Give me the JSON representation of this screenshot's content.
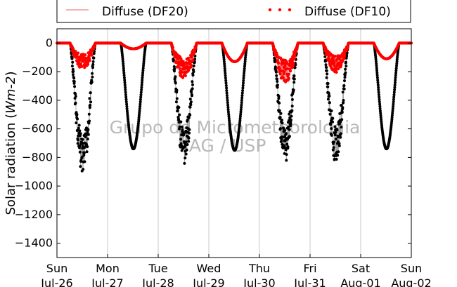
{
  "chart_data": {
    "type": "scatter",
    "ylabel_prefix": "Solar radiation (",
    "ylabel_unit": "Wm-2",
    "ylabel_suffix": ")",
    "ylim": [
      -1500,
      100
    ],
    "yticks": [
      0,
      -200,
      -400,
      -600,
      -800,
      -1000,
      -1200,
      -1400
    ],
    "xlim_days": [
      0,
      7
    ],
    "xticks": [
      {
        "day": "Sun",
        "date": "Jul-26"
      },
      {
        "day": "Mon",
        "date": "Jul-27"
      },
      {
        "day": "Tue",
        "date": "Jul-28"
      },
      {
        "day": "Wed",
        "date": "Jul-29"
      },
      {
        "day": "Thu",
        "date": "Jul-30"
      },
      {
        "day": "Fri",
        "date": "Jul-31"
      },
      {
        "day": "Sat",
        "date": "Aug-01"
      },
      {
        "day": "Sun",
        "date": "Aug-02"
      }
    ],
    "grid": "vertical",
    "legend_position": "top",
    "watermark": [
      "Grupo de Micrometeorologia",
      "IAG / USP"
    ],
    "series": [
      {
        "name": "Diffuse (DF20)",
        "style": "line",
        "color": "#f08080"
      },
      {
        "name": "Diffuse (DF10)",
        "style": "dots",
        "color": "#ff0000"
      },
      {
        "name": "",
        "style": "dots",
        "color": "#000000"
      }
    ],
    "daily_profiles": [
      {
        "global_min": -800,
        "diffuse_min": -130,
        "noisy": true
      },
      {
        "global_min": -740,
        "diffuse_min": -40,
        "noisy": false
      },
      {
        "global_min": -740,
        "diffuse_min": -180,
        "noisy": true
      },
      {
        "global_min": -750,
        "diffuse_min": -130,
        "noisy": false
      },
      {
        "global_min": -710,
        "diffuse_min": -200,
        "noisy": true
      },
      {
        "global_min": -710,
        "diffuse_min": -150,
        "noisy": true
      },
      {
        "global_min": -740,
        "diffuse_min": -110,
        "noisy": false
      }
    ]
  }
}
